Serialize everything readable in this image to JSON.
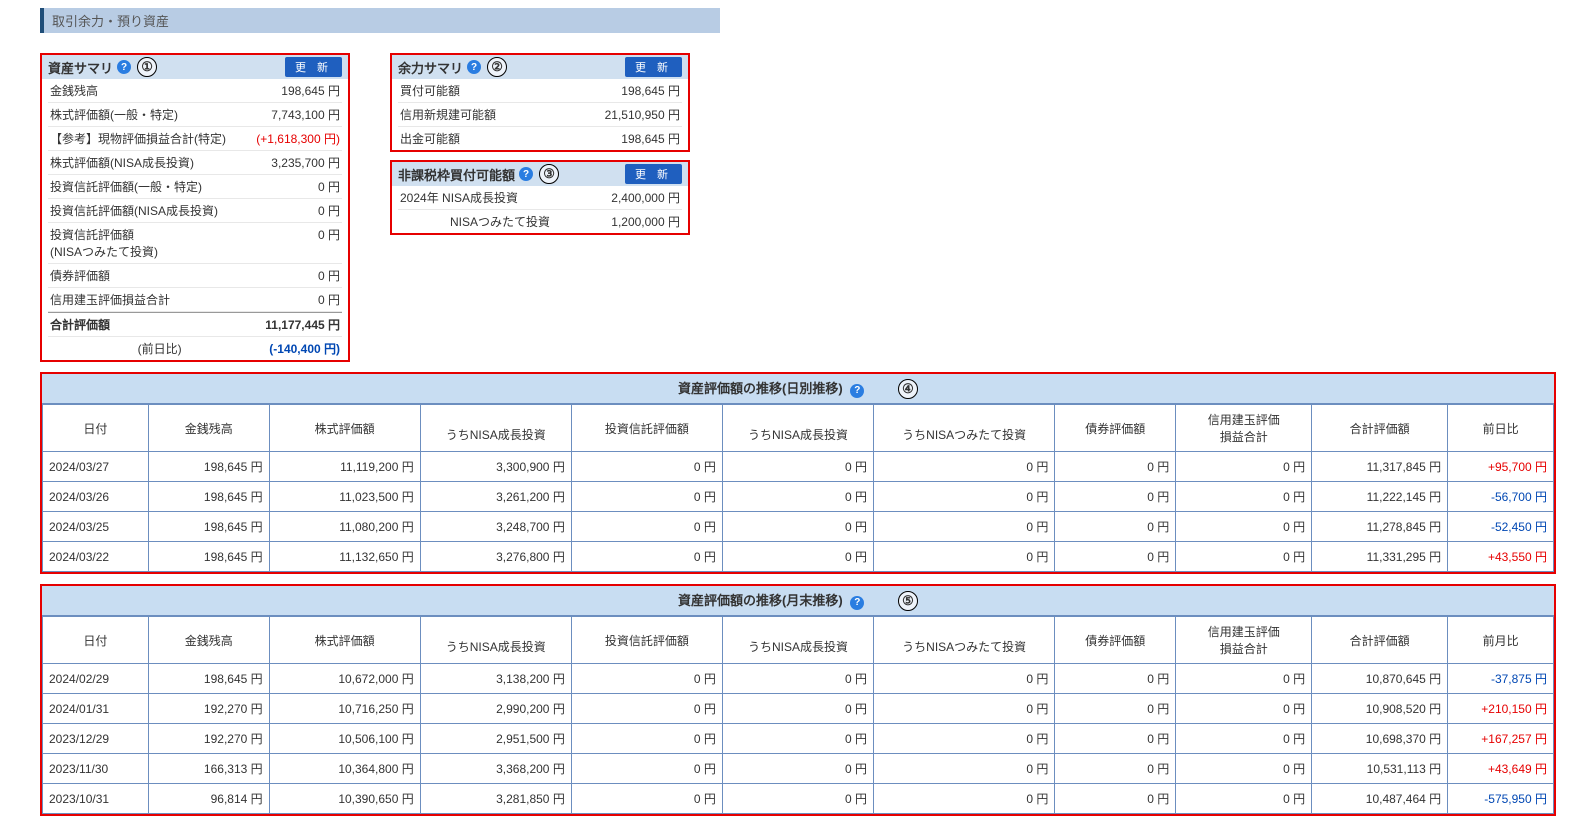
{
  "page_title": "取引余力・預り資産",
  "update_label": "更 新",
  "panel1": {
    "title": "資産サマリ",
    "marker": "①",
    "rows": [
      {
        "k": "金銭残高",
        "v": "198,645 円"
      },
      {
        "k": "株式評価額(一般・特定)",
        "v": "7,743,100 円"
      },
      {
        "k": "【参考】現物評価損益合計(特定)",
        "v": "(+1,618,300 円)",
        "cls": "pos"
      },
      {
        "k": "株式評価額(NISA成長投資)",
        "v": "3,235,700 円"
      },
      {
        "k": "投資信託評価額(一般・特定)",
        "v": "0 円"
      },
      {
        "k": "投資信託評価額(NISA成長投資)",
        "v": "0 円"
      },
      {
        "k": "投資信託評価額\n(NISAつみたて投資)",
        "v": "0 円"
      },
      {
        "k": "債券評価額",
        "v": "0 円"
      },
      {
        "k": "信用建玉評価損益合計",
        "v": "0 円"
      }
    ],
    "total": {
      "k": "合計評価額",
      "v": "11,177,445 円"
    },
    "prev": {
      "k": "(前日比)",
      "v": "(-140,400 円)",
      "cls": "neg"
    }
  },
  "panel2": {
    "title": "余力サマリ",
    "marker": "②",
    "rows": [
      {
        "k": "買付可能額",
        "v": "198,645 円"
      },
      {
        "k": "信用新規建可能額",
        "v": "21,510,950 円"
      },
      {
        "k": "出金可能額",
        "v": "198,645 円"
      }
    ]
  },
  "panel3": {
    "title": "非課税枠買付可能額",
    "marker": "③",
    "rows": [
      {
        "k": "2024年  NISA成長投資",
        "v": "2,400,000 円"
      },
      {
        "k": "NISAつみたて投資",
        "v": "1,200,000 円",
        "indent": true
      }
    ]
  },
  "daily": {
    "title": "資産評価額の推移(日別推移)",
    "marker": "④",
    "headers_top": [
      "日付",
      "金銭残高",
      "株式評価額",
      "",
      "投資信託評価額",
      "",
      "",
      "債券評価額",
      "信用建玉評価\n損益合計",
      "合計評価額",
      "前日比"
    ],
    "headers_sub": [
      "",
      "",
      "",
      "うちNISA成長投資",
      "",
      "うちNISA成長投資",
      "うちNISAつみたて投資",
      "",
      "",
      "",
      ""
    ],
    "rows": [
      [
        "2024/03/27",
        "198,645 円",
        "11,119,200 円",
        "3,300,900 円",
        "0 円",
        "0 円",
        "0 円",
        "0 円",
        "0 円",
        "11,317,845 円",
        "+95,700 円"
      ],
      [
        "2024/03/26",
        "198,645 円",
        "11,023,500 円",
        "3,261,200 円",
        "0 円",
        "0 円",
        "0 円",
        "0 円",
        "0 円",
        "11,222,145 円",
        "-56,700 円"
      ],
      [
        "2024/03/25",
        "198,645 円",
        "11,080,200 円",
        "3,248,700 円",
        "0 円",
        "0 円",
        "0 円",
        "0 円",
        "0 円",
        "11,278,845 円",
        "-52,450 円"
      ],
      [
        "2024/03/22",
        "198,645 円",
        "11,132,650 円",
        "3,276,800 円",
        "0 円",
        "0 円",
        "0 円",
        "0 円",
        "0 円",
        "11,331,295 円",
        "+43,550 円"
      ]
    ],
    "diffcls": [
      "pos",
      "neg",
      "neg",
      "pos"
    ]
  },
  "monthly": {
    "title": "資産評価額の推移(月末推移)",
    "marker": "⑤",
    "headers_top": [
      "日付",
      "金銭残高",
      "株式評価額",
      "",
      "投資信託評価額",
      "",
      "",
      "債券評価額",
      "信用建玉評価\n損益合計",
      "合計評価額",
      "前月比"
    ],
    "headers_sub": [
      "",
      "",
      "",
      "うちNISA成長投資",
      "",
      "うちNISA成長投資",
      "うちNISAつみたて投資",
      "",
      "",
      "",
      ""
    ],
    "rows": [
      [
        "2024/02/29",
        "198,645 円",
        "10,672,000 円",
        "3,138,200 円",
        "0 円",
        "0 円",
        "0 円",
        "0 円",
        "0 円",
        "10,870,645 円",
        "-37,875 円"
      ],
      [
        "2024/01/31",
        "192,270 円",
        "10,716,250 円",
        "2,990,200 円",
        "0 円",
        "0 円",
        "0 円",
        "0 円",
        "0 円",
        "10,908,520 円",
        "+210,150 円"
      ],
      [
        "2023/12/29",
        "192,270 円",
        "10,506,100 円",
        "2,951,500 円",
        "0 円",
        "0 円",
        "0 円",
        "0 円",
        "0 円",
        "10,698,370 円",
        "+167,257 円"
      ],
      [
        "2023/11/30",
        "166,313 円",
        "10,364,800 円",
        "3,368,200 円",
        "0 円",
        "0 円",
        "0 円",
        "0 円",
        "0 円",
        "10,531,113 円",
        "+43,649 円"
      ],
      [
        "2023/10/31",
        "96,814 円",
        "10,390,650 円",
        "3,281,850 円",
        "0 円",
        "0 円",
        "0 円",
        "0 円",
        "0 円",
        "10,487,464 円",
        "-575,950 円"
      ]
    ],
    "diffcls": [
      "neg",
      "pos",
      "pos",
      "pos",
      "neg"
    ]
  }
}
